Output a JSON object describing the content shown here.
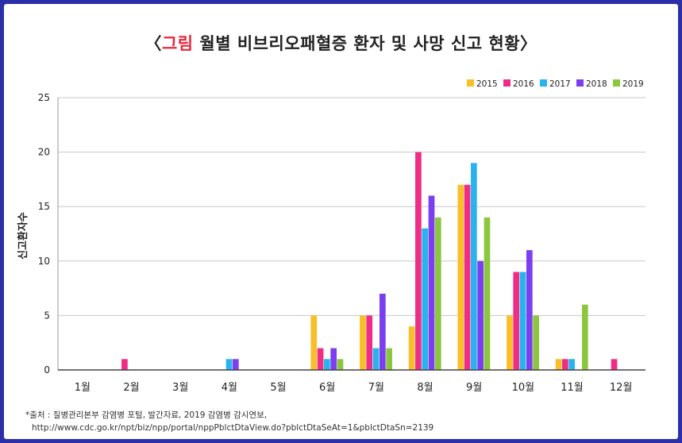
{
  "title": {
    "bracket_open": "〈",
    "accent": "그림",
    "main": " 월별 비브리오패혈증 환자 및 사망 신고 현황",
    "bracket_close": "〉",
    "accent_color": "#e8263b"
  },
  "source": {
    "line1": "*출처 : 질병관리본부 감염병 포털, 발간자료, 2019 감염병 감시연보,",
    "line2": "http://www.cdc.go.kr/npt/biz/npp/portal/nppPblctDtaView.do?pblctDtaSeAt=1&pblctDtaSn=2139"
  },
  "chart_data": {
    "type": "bar",
    "title": "",
    "xlabel": "",
    "ylabel": "신고환자수",
    "ylim": [
      0,
      25
    ],
    "yticks": [
      0,
      5,
      10,
      15,
      20,
      25
    ],
    "grid": true,
    "legend_position": "top-right",
    "categories": [
      "1월",
      "2월",
      "3월",
      "4월",
      "5월",
      "6월",
      "7월",
      "8월",
      "9월",
      "10월",
      "11월",
      "12월"
    ],
    "series": [
      {
        "name": "2015",
        "color": "#f9bf2a",
        "values": [
          0,
          0,
          0,
          0,
          0,
          5,
          5,
          4,
          17,
          5,
          1,
          0
        ]
      },
      {
        "name": "2016",
        "color": "#ef2d87",
        "values": [
          0,
          1,
          0,
          0,
          0,
          2,
          5,
          20,
          17,
          9,
          1,
          1
        ]
      },
      {
        "name": "2017",
        "color": "#29b3ee",
        "values": [
          0,
          0,
          0,
          1,
          0,
          1,
          2,
          13,
          19,
          9,
          1,
          0
        ]
      },
      {
        "name": "2018",
        "color": "#7b3ff0",
        "values": [
          0,
          0,
          0,
          1,
          0,
          2,
          7,
          16,
          10,
          11,
          0,
          0
        ]
      },
      {
        "name": "2019",
        "color": "#8cc63f",
        "values": [
          0,
          0,
          0,
          0,
          0,
          1,
          2,
          14,
          14,
          5,
          6,
          0
        ]
      }
    ]
  }
}
